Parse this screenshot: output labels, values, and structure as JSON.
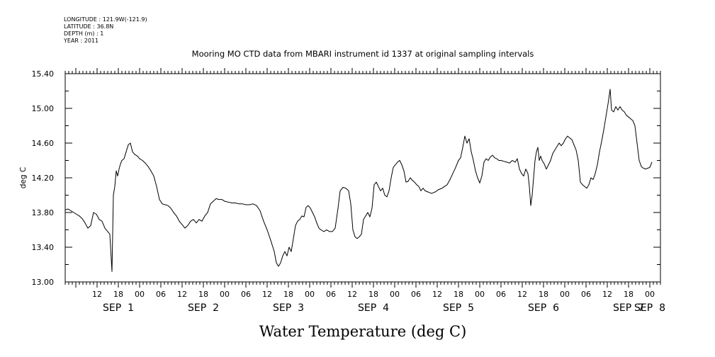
{
  "header": {
    "longitude": "LONGITUDE : 121.9W(-121.9)",
    "latitude": "LATITUDE : 36.8N",
    "depth": "DEPTH (m) : 1",
    "year": "YEAR : 2011"
  },
  "chart_data": {
    "type": "line",
    "title": "Mooring MO CTD data from MBARI instrument id 1337 at original sampling intervals",
    "xlabel": "Water Temperature (deg C)",
    "ylabel": "deg C",
    "ylim": [
      13.0,
      15.4
    ],
    "xlim": [
      3.0,
      171.0
    ],
    "x_units": "hours since 2011-08-31 00:00 (axis shows hour-of-day ticks and day labels)",
    "y_ticks": [
      "13.00",
      "13.40",
      "13.80",
      "14.20",
      "14.60",
      "15.00",
      "15.40"
    ],
    "x_ticks": [
      {
        "x": 12,
        "label": "12"
      },
      {
        "x": 18,
        "label": "18"
      },
      {
        "x": 24,
        "label": "00"
      },
      {
        "x": 30,
        "label": "06"
      },
      {
        "x": 36,
        "label": "12"
      },
      {
        "x": 42,
        "label": "18"
      },
      {
        "x": 48,
        "label": "00"
      },
      {
        "x": 54,
        "label": "06"
      },
      {
        "x": 60,
        "label": "12"
      },
      {
        "x": 66,
        "label": "18"
      },
      {
        "x": 72,
        "label": "00"
      },
      {
        "x": 78,
        "label": "06"
      },
      {
        "x": 84,
        "label": "12"
      },
      {
        "x": 90,
        "label": "18"
      },
      {
        "x": 96,
        "label": "00"
      },
      {
        "x": 102,
        "label": "06"
      },
      {
        "x": 108,
        "label": "12"
      },
      {
        "x": 114,
        "label": "18"
      },
      {
        "x": 120,
        "label": "00"
      },
      {
        "x": 126,
        "label": "06"
      },
      {
        "x": 132,
        "label": "12"
      },
      {
        "x": 138,
        "label": "18"
      },
      {
        "x": 144,
        "label": "00"
      },
      {
        "x": 150,
        "label": "06"
      },
      {
        "x": 156,
        "label": "12"
      },
      {
        "x": 162,
        "label": "18"
      },
      {
        "x": 168,
        "label": "00"
      }
    ],
    "day_labels": [
      {
        "x": 18,
        "label": "SEP  1"
      },
      {
        "x": 42,
        "label": "SEP  2"
      },
      {
        "x": 66,
        "label": "SEP  3"
      },
      {
        "x": 90,
        "label": "SEP  4"
      },
      {
        "x": 114,
        "label": "SEP  5"
      },
      {
        "x": 138,
        "label": "SEP  6"
      },
      {
        "x": 162,
        "label": "SEP  7"
      },
      {
        "x": 168,
        "label": "SEP  8"
      }
    ],
    "series": [
      {
        "values": [
          [
            3.0,
            13.83
          ],
          [
            3.8,
            13.84
          ],
          [
            4.6,
            13.82
          ],
          [
            5.4,
            13.8
          ],
          [
            6.2,
            13.78
          ],
          [
            7.0,
            13.76
          ],
          [
            7.8,
            13.73
          ],
          [
            8.6,
            13.68
          ],
          [
            9.4,
            13.62
          ],
          [
            10.2,
            13.65
          ],
          [
            11.0,
            13.8
          ],
          [
            11.8,
            13.78
          ],
          [
            12.6,
            13.72
          ],
          [
            13.4,
            13.7
          ],
          [
            14.2,
            13.62
          ],
          [
            15.0,
            13.58
          ],
          [
            15.6,
            13.55
          ],
          [
            16.2,
            13.12
          ],
          [
            16.6,
            14.0
          ],
          [
            17.0,
            14.1
          ],
          [
            17.4,
            14.28
          ],
          [
            17.8,
            14.22
          ],
          [
            18.2,
            14.3
          ],
          [
            18.6,
            14.36
          ],
          [
            19.0,
            14.4
          ],
          [
            19.6,
            14.42
          ],
          [
            20.2,
            14.5
          ],
          [
            20.8,
            14.58
          ],
          [
            21.4,
            14.6
          ],
          [
            22.0,
            14.5
          ],
          [
            22.6,
            14.47
          ],
          [
            23.4,
            14.45
          ],
          [
            24.0,
            14.42
          ],
          [
            24.8,
            14.4
          ],
          [
            25.6,
            14.37
          ],
          [
            26.4,
            14.33
          ],
          [
            27.2,
            14.28
          ],
          [
            28.0,
            14.22
          ],
          [
            28.8,
            14.1
          ],
          [
            29.6,
            13.95
          ],
          [
            30.4,
            13.9
          ],
          [
            31.2,
            13.89
          ],
          [
            32.0,
            13.88
          ],
          [
            32.8,
            13.85
          ],
          [
            33.6,
            13.8
          ],
          [
            34.4,
            13.76
          ],
          [
            35.2,
            13.7
          ],
          [
            36.0,
            13.66
          ],
          [
            36.8,
            13.62
          ],
          [
            37.6,
            13.65
          ],
          [
            38.4,
            13.7
          ],
          [
            39.2,
            13.72
          ],
          [
            40.0,
            13.68
          ],
          [
            40.8,
            13.72
          ],
          [
            41.6,
            13.7
          ],
          [
            42.4,
            13.76
          ],
          [
            43.2,
            13.8
          ],
          [
            44.0,
            13.9
          ],
          [
            44.8,
            13.93
          ],
          [
            45.6,
            13.96
          ],
          [
            46.4,
            13.95
          ],
          [
            47.2,
            13.95
          ],
          [
            48.0,
            13.93
          ],
          [
            49.0,
            13.92
          ],
          [
            50.0,
            13.91
          ],
          [
            51.0,
            13.91
          ],
          [
            52.0,
            13.9
          ],
          [
            53.0,
            13.9
          ],
          [
            54.0,
            13.89
          ],
          [
            55.0,
            13.89
          ],
          [
            56.0,
            13.9
          ],
          [
            57.0,
            13.88
          ],
          [
            58.0,
            13.82
          ],
          [
            59.0,
            13.7
          ],
          [
            60.0,
            13.6
          ],
          [
            61.0,
            13.48
          ],
          [
            62.0,
            13.35
          ],
          [
            62.6,
            13.22
          ],
          [
            63.2,
            13.18
          ],
          [
            63.8,
            13.22
          ],
          [
            64.4,
            13.3
          ],
          [
            65.0,
            13.35
          ],
          [
            65.6,
            13.3
          ],
          [
            66.2,
            13.4
          ],
          [
            66.8,
            13.35
          ],
          [
            67.4,
            13.5
          ],
          [
            68.0,
            13.65
          ],
          [
            68.6,
            13.7
          ],
          [
            69.2,
            13.72
          ],
          [
            69.8,
            13.76
          ],
          [
            70.4,
            13.75
          ],
          [
            71.0,
            13.86
          ],
          [
            71.6,
            13.88
          ],
          [
            72.2,
            13.85
          ],
          [
            72.8,
            13.8
          ],
          [
            73.4,
            13.75
          ],
          [
            74.0,
            13.68
          ],
          [
            74.6,
            13.62
          ],
          [
            75.2,
            13.6
          ],
          [
            76.0,
            13.58
          ],
          [
            76.8,
            13.6
          ],
          [
            77.6,
            13.58
          ],
          [
            78.4,
            13.58
          ],
          [
            79.2,
            13.62
          ],
          [
            80.0,
            13.85
          ],
          [
            80.6,
            14.05
          ],
          [
            81.4,
            14.09
          ],
          [
            82.2,
            14.08
          ],
          [
            83.0,
            14.05
          ],
          [
            83.6,
            13.9
          ],
          [
            84.2,
            13.6
          ],
          [
            84.8,
            13.52
          ],
          [
            85.4,
            13.5
          ],
          [
            86.0,
            13.52
          ],
          [
            86.6,
            13.55
          ],
          [
            87.2,
            13.72
          ],
          [
            87.8,
            13.76
          ],
          [
            88.4,
            13.8
          ],
          [
            89.0,
            13.75
          ],
          [
            89.6,
            13.85
          ],
          [
            90.2,
            14.12
          ],
          [
            90.8,
            14.15
          ],
          [
            91.4,
            14.1
          ],
          [
            92.0,
            14.05
          ],
          [
            92.6,
            14.08
          ],
          [
            93.2,
            14.0
          ],
          [
            93.8,
            13.98
          ],
          [
            94.4,
            14.05
          ],
          [
            95.0,
            14.2
          ],
          [
            95.6,
            14.32
          ],
          [
            96.2,
            14.35
          ],
          [
            96.8,
            14.38
          ],
          [
            97.4,
            14.4
          ],
          [
            98.0,
            14.35
          ],
          [
            98.6,
            14.28
          ],
          [
            99.2,
            14.15
          ],
          [
            99.8,
            14.16
          ],
          [
            100.4,
            14.2
          ],
          [
            101.0,
            14.17
          ],
          [
            101.6,
            14.15
          ],
          [
            102.2,
            14.12
          ],
          [
            102.8,
            14.1
          ],
          [
            103.4,
            14.05
          ],
          [
            104.0,
            14.08
          ],
          [
            104.6,
            14.05
          ],
          [
            105.2,
            14.04
          ],
          [
            105.8,
            14.03
          ],
          [
            106.4,
            14.02
          ],
          [
            107.0,
            14.03
          ],
          [
            107.6,
            14.04
          ],
          [
            108.2,
            14.06
          ],
          [
            108.8,
            14.07
          ],
          [
            109.4,
            14.08
          ],
          [
            110.0,
            14.1
          ],
          [
            110.8,
            14.12
          ],
          [
            111.6,
            14.18
          ],
          [
            112.4,
            14.25
          ],
          [
            113.2,
            14.32
          ],
          [
            114.0,
            14.4
          ],
          [
            114.6,
            14.43
          ],
          [
            115.2,
            14.55
          ],
          [
            115.8,
            14.68
          ],
          [
            116.4,
            14.6
          ],
          [
            117.0,
            14.65
          ],
          [
            117.6,
            14.5
          ],
          [
            118.2,
            14.4
          ],
          [
            118.8,
            14.28
          ],
          [
            119.4,
            14.2
          ],
          [
            120.0,
            14.14
          ],
          [
            120.6,
            14.22
          ],
          [
            121.2,
            14.38
          ],
          [
            121.8,
            14.42
          ],
          [
            122.4,
            14.4
          ],
          [
            123.0,
            14.44
          ],
          [
            123.6,
            14.46
          ],
          [
            124.2,
            14.43
          ],
          [
            124.8,
            14.42
          ],
          [
            125.4,
            14.4
          ],
          [
            126.0,
            14.4
          ],
          [
            126.8,
            14.39
          ],
          [
            127.6,
            14.38
          ],
          [
            128.4,
            14.37
          ],
          [
            129.2,
            14.4
          ],
          [
            130.0,
            14.38
          ],
          [
            130.6,
            14.42
          ],
          [
            131.2,
            14.3
          ],
          [
            131.8,
            14.25
          ],
          [
            132.4,
            14.22
          ],
          [
            133.0,
            14.3
          ],
          [
            133.6,
            14.25
          ],
          [
            134.0,
            14.1
          ],
          [
            134.4,
            13.88
          ],
          [
            134.8,
            14.0
          ],
          [
            135.2,
            14.2
          ],
          [
            135.6,
            14.4
          ],
          [
            136.0,
            14.5
          ],
          [
            136.4,
            14.55
          ],
          [
            136.8,
            14.4
          ],
          [
            137.2,
            14.45
          ],
          [
            137.6,
            14.4
          ],
          [
            138.2,
            14.36
          ],
          [
            138.8,
            14.3
          ],
          [
            139.4,
            14.35
          ],
          [
            140.0,
            14.4
          ],
          [
            140.6,
            14.48
          ],
          [
            141.2,
            14.52
          ],
          [
            141.8,
            14.56
          ],
          [
            142.4,
            14.6
          ],
          [
            143.0,
            14.57
          ],
          [
            143.6,
            14.6
          ],
          [
            144.2,
            14.65
          ],
          [
            144.8,
            14.68
          ],
          [
            145.4,
            14.66
          ],
          [
            146.0,
            14.64
          ],
          [
            146.6,
            14.58
          ],
          [
            147.2,
            14.52
          ],
          [
            147.8,
            14.4
          ],
          [
            148.4,
            14.15
          ],
          [
            149.0,
            14.12
          ],
          [
            149.6,
            14.1
          ],
          [
            150.2,
            14.08
          ],
          [
            150.8,
            14.12
          ],
          [
            151.4,
            14.2
          ],
          [
            152.0,
            14.18
          ],
          [
            152.6,
            14.25
          ],
          [
            153.2,
            14.35
          ],
          [
            153.8,
            14.5
          ],
          [
            154.4,
            14.62
          ],
          [
            155.0,
            14.75
          ],
          [
            155.6,
            14.9
          ],
          [
            156.2,
            15.05
          ],
          [
            156.8,
            15.22
          ],
          [
            157.2,
            14.98
          ],
          [
            157.8,
            14.96
          ],
          [
            158.4,
            15.02
          ],
          [
            159.0,
            14.98
          ],
          [
            159.6,
            15.02
          ],
          [
            160.2,
            14.98
          ],
          [
            160.8,
            14.96
          ],
          [
            161.4,
            14.92
          ],
          [
            162.0,
            14.9
          ],
          [
            162.6,
            14.88
          ],
          [
            163.2,
            14.86
          ],
          [
            163.8,
            14.8
          ],
          [
            164.4,
            14.6
          ],
          [
            165.0,
            14.4
          ],
          [
            165.6,
            14.33
          ],
          [
            166.2,
            14.31
          ],
          [
            166.8,
            14.3
          ],
          [
            167.4,
            14.31
          ],
          [
            168.0,
            14.32
          ],
          [
            168.6,
            14.38
          ]
        ]
      }
    ],
    "grid": false,
    "legend": "none"
  }
}
